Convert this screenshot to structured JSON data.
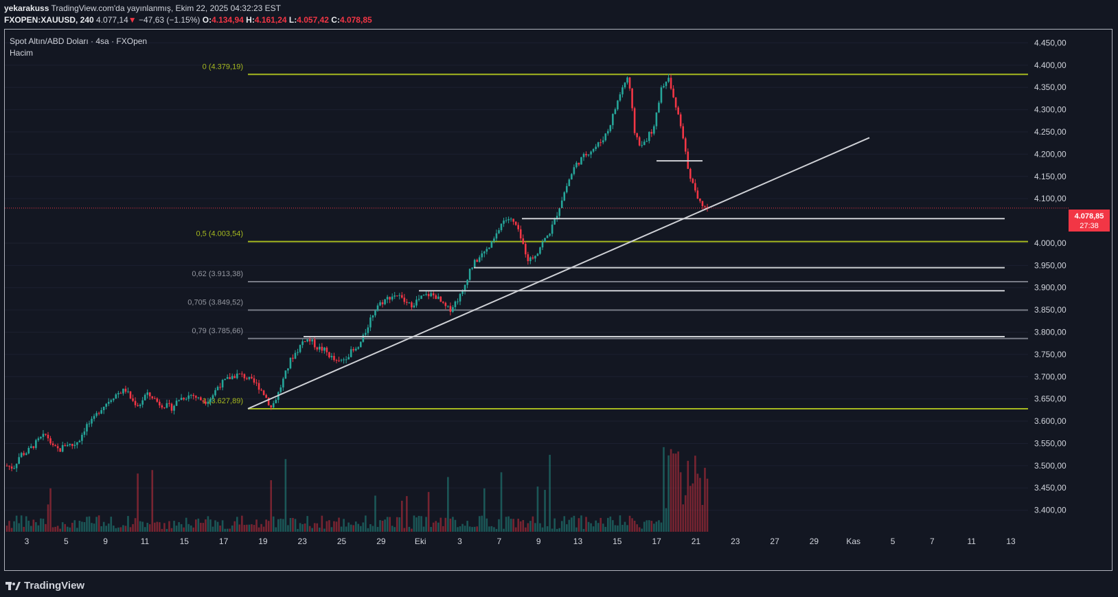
{
  "header": {
    "author": "yekarakuss",
    "published_text": "TradingView.com'da yayınlanmış, Ekim 22, 2025 04:32:23 EST",
    "symbol": "FXOPEN:XAUUSD, 240",
    "last": "4.077,14",
    "arrow": "▼",
    "change": "−47,63 (−1.15%)",
    "o_label": "O:",
    "o_value": "4.134,94",
    "h_label": "H:",
    "h_value": "4.161,24",
    "l_label": "L:",
    "l_value": "4.057,42",
    "c_label": "C:",
    "c_value": "4.078,85"
  },
  "legend": {
    "title": "Spot Altın/ABD Doları · 4sa · FXOpen",
    "volume": "Hacim"
  },
  "price_tag": {
    "price": "4.078,85",
    "countdown": "27:38"
  },
  "brand": {
    "name": "TradingView"
  },
  "colors": {
    "up": "#26a69a",
    "down": "#f23645",
    "fib_main": "#a6b91f",
    "fib_mid": "#787b86",
    "white_line": "#cfd1d6"
  },
  "chart_data": {
    "type": "candlestick",
    "title": "Spot Altın/ABD Doları · 4sa · FXOpen",
    "y_axis": {
      "min": 3350,
      "max": 4480,
      "ticks": [
        "4.450,00",
        "4.400,00",
        "4.350,00",
        "4.300,00",
        "4.250,00",
        "4.200,00",
        "4.150,00",
        "4.100,00",
        "4.000,00",
        "3.950,00",
        "3.900,00",
        "3.850,00",
        "3.800,00",
        "3.750,00",
        "3.700,00",
        "3.650,00",
        "3.600,00",
        "3.550,00",
        "3.500,00",
        "3.450,00",
        "3.400,00"
      ],
      "tick_values": [
        4450,
        4400,
        4350,
        4300,
        4250,
        4200,
        4150,
        4100,
        4000,
        3950,
        3900,
        3850,
        3800,
        3750,
        3700,
        3650,
        3600,
        3550,
        3500,
        3450,
        3400
      ]
    },
    "x_axis": {
      "labels": [
        "3",
        "5",
        "9",
        "11",
        "15",
        "17",
        "19",
        "23",
        "25",
        "29",
        "Eki",
        "3",
        "7",
        "9",
        "13",
        "15",
        "17",
        "21",
        "23",
        "27",
        "29",
        "Kas",
        "5",
        "7",
        "11",
        "13"
      ]
    },
    "fib_levels": [
      {
        "label": "0 (4.379,19)",
        "value": 4379.19,
        "style": "main"
      },
      {
        "label": "0,5 (4.003,54)",
        "value": 4003.54,
        "style": "main"
      },
      {
        "label": "0,62 (3.913,38)",
        "value": 3913.38,
        "style": "mid"
      },
      {
        "label": "0,705 (3.849,52)",
        "value": 3849.52,
        "style": "mid"
      },
      {
        "label": "0,79 (3.785,66)",
        "value": 3785.66,
        "style": "mid"
      },
      {
        "label": "1 (3.627,89)",
        "value": 3627.89,
        "style": "main"
      }
    ],
    "horizontal_lines": [
      4185,
      4055,
      3945,
      3893,
      3790
    ],
    "trendline": {
      "start": 3628,
      "end": 4237
    },
    "current_price": 4078.85,
    "price_path": [
      3500,
      3495,
      3525,
      3530,
      3545,
      3560,
      3570,
      3540,
      3535,
      3550,
      3545,
      3560,
      3590,
      3600,
      3625,
      3640,
      3655,
      3665,
      3670,
      3645,
      3635,
      3660,
      3655,
      3640,
      3635,
      3630,
      3650,
      3655,
      3660,
      3650,
      3645,
      3655,
      3680,
      3690,
      3700,
      3705,
      3700,
      3690,
      3680,
      3660,
      3630,
      3660,
      3700,
      3740,
      3760,
      3785,
      3780,
      3765,
      3760,
      3745,
      3730,
      3740,
      3755,
      3760,
      3790,
      3830,
      3860,
      3870,
      3880,
      3885,
      3870,
      3860,
      3870,
      3880,
      3885,
      3880,
      3860,
      3850,
      3870,
      3890,
      3940,
      3960,
      3975,
      3990,
      4015,
      4050,
      4055,
      4040,
      4000,
      3960,
      3975,
      4000,
      4020,
      4055,
      4100,
      4140,
      4175,
      4190,
      4205,
      4215,
      4230,
      4255,
      4300,
      4345,
      4375,
      4250,
      4215,
      4240,
      4260,
      4350,
      4375,
      4320,
      4260,
      4175,
      4120,
      4090,
      4080
    ]
  }
}
